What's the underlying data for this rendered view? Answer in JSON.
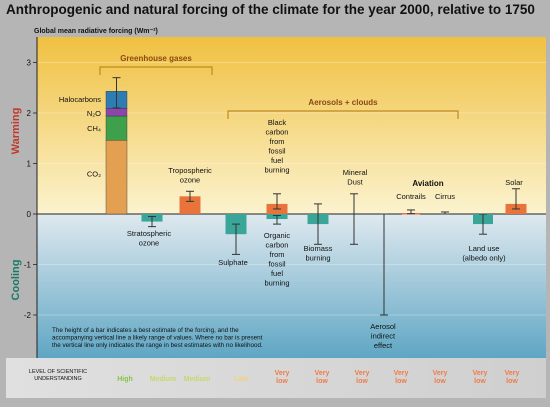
{
  "title": "Anthropogenic and natural forcing of the climate for the year 2000, relative to 1750",
  "y_axis_label": "Global mean radiative forcing (Wm⁻²)",
  "warming_label": "Warming",
  "cooling_label": "Cooling",
  "colors": {
    "warm_top": "#f0c040",
    "warm_bottom": "#fbf3cf",
    "cool_top": "#dfe9ef",
    "cool_bottom": "#5fa6c4",
    "warming_text": "#c0392b",
    "cooling_text": "#1a7a6a",
    "teal_bar": "#3aa69a",
    "orange_bar": "#e8743b",
    "whisker": "#333333",
    "gas_co2": "#e3a050",
    "gas_ch4": "#3ea04a",
    "gas_n2o": "#8e44ad",
    "gas_halo": "#2d7db3",
    "bracket": "#c08a20",
    "loss_high": "#8bc34a",
    "loss_medium": "#c6d86a",
    "loss_low": "#f7d070",
    "loss_verylow": "#ef7c4a"
  },
  "chart_data": {
    "type": "bar",
    "ylim": [
      -2.5,
      3.2
    ],
    "yticks": [
      -2,
      -1,
      0,
      1,
      2,
      3
    ],
    "ytick_labels": [
      "-2",
      "-1",
      "0",
      "1",
      "2",
      "3"
    ],
    "greenhouse_gases": {
      "components": [
        {
          "name": "CO₂",
          "value": 1.46
        },
        {
          "name": "CH₄",
          "value": 0.48
        },
        {
          "name": "N₂O",
          "value": 0.15
        },
        {
          "name": "Halocarbons",
          "value": 0.34
        }
      ],
      "total": 2.43,
      "range": [
        2.1,
        2.7
      ]
    },
    "bracket_greenhouse": "Greenhouse gases",
    "bracket_aerosols": "Aerosols + clouds",
    "aviation_label": "Aviation",
    "bars": [
      {
        "id": "stratospheric-ozone",
        "label": "Stratospheric\nozone",
        "value": -0.15,
        "range": [
          -0.25,
          -0.05
        ],
        "color": "teal"
      },
      {
        "id": "tropospheric-ozone",
        "label": "Tropospheric\nozone",
        "value": 0.35,
        "range": [
          0.25,
          0.45
        ],
        "color": "orange"
      },
      {
        "id": "sulphate",
        "label": "Sulphate",
        "value": -0.4,
        "range": [
          -0.8,
          -0.2
        ],
        "color": "teal"
      },
      {
        "id": "black-carbon",
        "label": "Black\ncarbon\nfrom\nfossil\nfuel\nburning",
        "value": 0.2,
        "range": [
          0.1,
          0.4
        ],
        "color": "orange"
      },
      {
        "id": "organic-carbon",
        "label": "Organic\ncarbon\nfrom\nfossil\nfuel\nburning",
        "value": -0.1,
        "range": [
          -0.2,
          -0.03
        ],
        "color": "teal"
      },
      {
        "id": "biomass-burning",
        "label": "Biomass\nburning",
        "value": -0.2,
        "range": [
          -0.6,
          0.2
        ],
        "color": "teal"
      },
      {
        "id": "mineral-dust",
        "label": "Mineral\nDust",
        "value": null,
        "range": [
          -0.6,
          0.4
        ],
        "color": "none"
      },
      {
        "id": "aerosol-indirect",
        "label": "Aerosol\nindirect\neffect",
        "value": null,
        "range": [
          -2.0,
          0.0
        ],
        "color": "none"
      },
      {
        "id": "contrails",
        "label": "Contrails",
        "value": 0.02,
        "range": [
          0.005,
          0.08
        ],
        "color": "orange"
      },
      {
        "id": "cirrus",
        "label": "Cirrus",
        "value": null,
        "range": [
          0.0,
          0.04
        ],
        "color": "none"
      },
      {
        "id": "land-use",
        "label": "Land use\n(albedo only)",
        "value": -0.2,
        "range": [
          -0.4,
          0.0
        ],
        "color": "teal"
      },
      {
        "id": "solar",
        "label": "Solar",
        "value": 0.2,
        "range": [
          0.1,
          0.5
        ],
        "color": "orange"
      }
    ],
    "note": "The height of a bar indicates a best estimate of the forcing, and the\naccompanying vertical line a likely range of values.  Where no bar is present\nthe vertical line only indicates the range in best estimates with no likelihood.",
    "loss": {
      "caption": "LEVEL OF SCIENTIFIC\nUNDERSTANDING",
      "levels": [
        {
          "text": "High",
          "level": "high"
        },
        {
          "text": "Medium",
          "level": "medium"
        },
        {
          "text": "Medium",
          "level": "medium"
        },
        {
          "text": "Low",
          "level": "low"
        },
        {
          "text": "Very\nlow",
          "level": "verylow"
        },
        {
          "text": "Very\nlow",
          "level": "verylow"
        },
        {
          "text": "Very\nlow",
          "level": "verylow"
        },
        {
          "text": "Very\nlow",
          "level": "verylow"
        },
        {
          "text": "Very\nlow",
          "level": "verylow"
        },
        {
          "text": "Very\nlow",
          "level": "verylow"
        },
        {
          "text": "Very\nlow",
          "level": "verylow"
        }
      ]
    }
  }
}
